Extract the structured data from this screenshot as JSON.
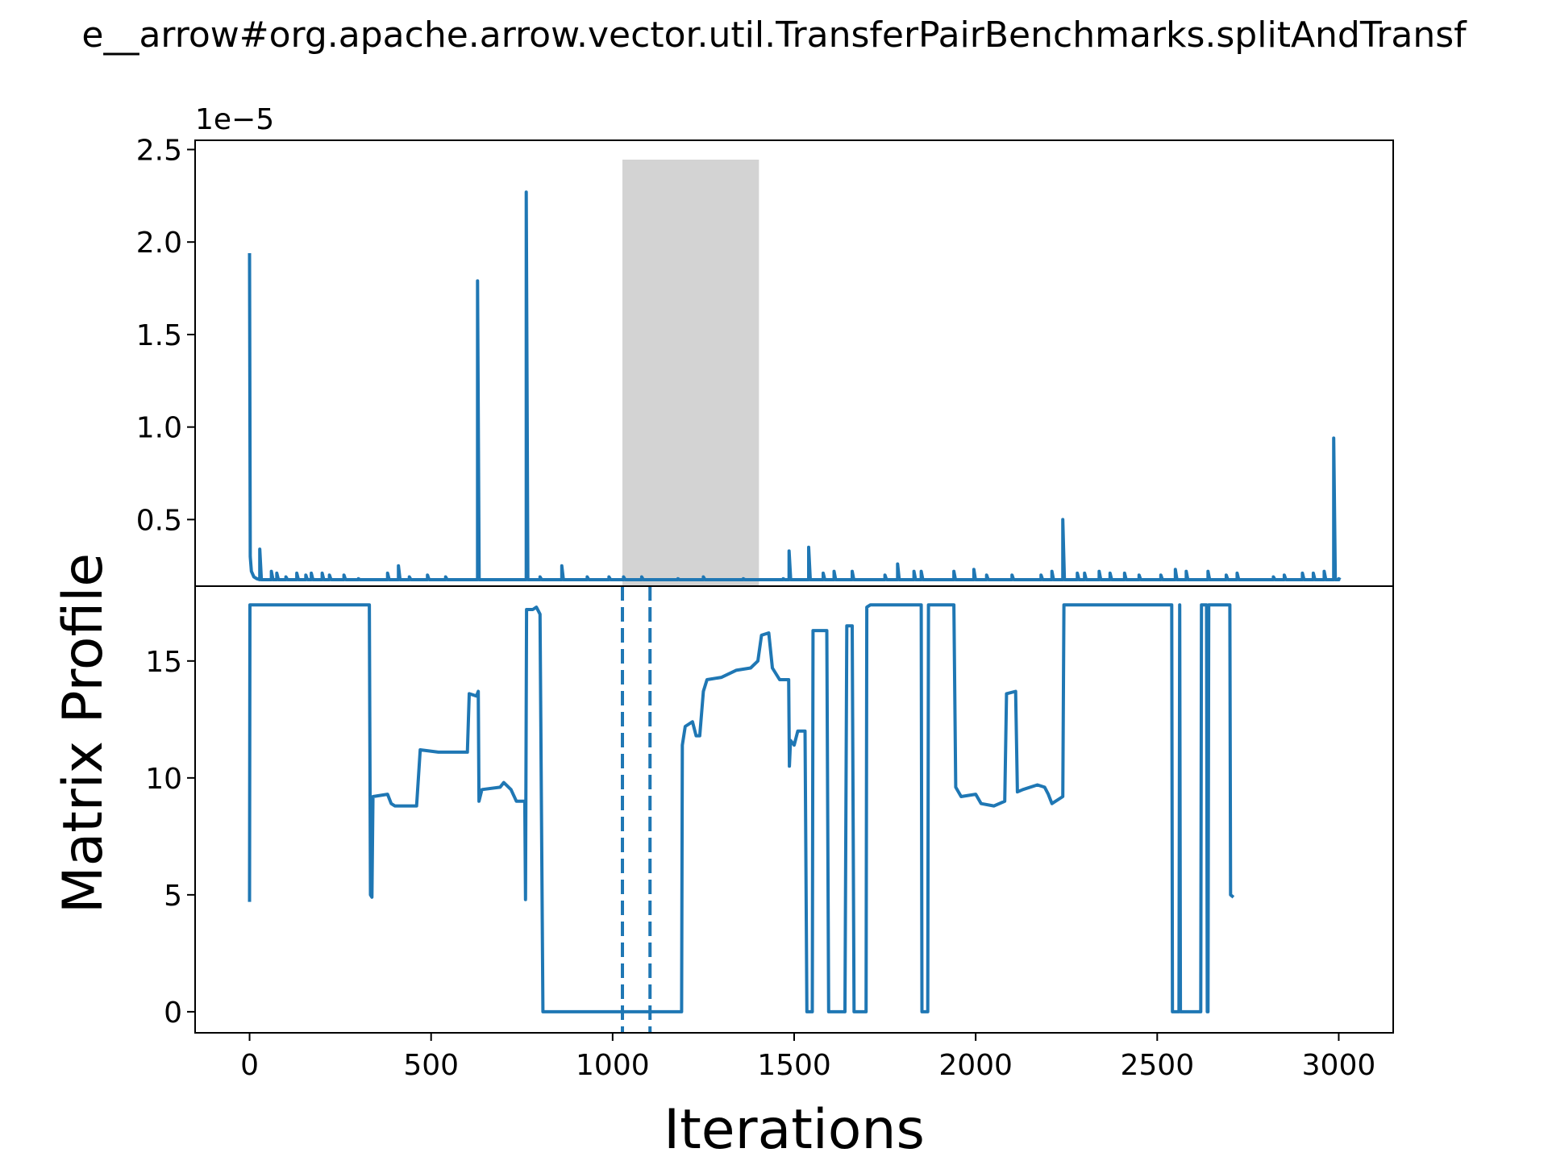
{
  "title": "e__arrow#org.apache.arrow.vector.util.TransferPairBenchmarks.splitAndTransf",
  "colors": {
    "line": "#1f77b4",
    "highlight": "#d3d3d3",
    "axis": "#000000"
  },
  "chart_data": [
    {
      "type": "line",
      "panel": "top",
      "title": "",
      "xlabel": "",
      "ylabel": "",
      "offset_label": "1e−5",
      "xlim": [
        -150,
        3150
      ],
      "ylim": [
        0.14,
        2.55
      ],
      "yticks": [
        0.5,
        1.0,
        1.5,
        2.0,
        2.5
      ],
      "ytick_labels": [
        "0.5",
        "1.0",
        "1.5",
        "2.0",
        "2.5"
      ],
      "highlight_span": [
        1027,
        1403
      ],
      "series": [
        {
          "baseline": 0.175,
          "start": [
            [
              0,
              1.94
            ],
            [
              2,
              0.3
            ],
            [
              5,
              0.22
            ],
            [
              12,
              0.19
            ],
            [
              20,
              0.18
            ]
          ],
          "spikes": [
            [
              28,
              0.34
            ],
            [
              60,
              0.22
            ],
            [
              75,
              0.21
            ],
            [
              100,
              0.19
            ],
            [
              130,
              0.21
            ],
            [
              155,
              0.2
            ],
            [
              170,
              0.21
            ],
            [
              200,
              0.21
            ],
            [
              220,
              0.2
            ],
            [
              260,
              0.2
            ],
            [
              300,
              0.18
            ],
            [
              380,
              0.21
            ],
            [
              410,
              0.25
            ],
            [
              440,
              0.19
            ],
            [
              490,
              0.2
            ],
            [
              540,
              0.19
            ],
            [
              628,
              1.79
            ],
            [
              762,
              2.27
            ],
            [
              800,
              0.19
            ],
            [
              860,
              0.25
            ],
            [
              930,
              0.19
            ],
            [
              990,
              0.19
            ],
            [
              1030,
              0.19
            ],
            [
              1080,
              0.19
            ],
            [
              1180,
              0.18
            ],
            [
              1250,
              0.19
            ],
            [
              1360,
              0.18
            ],
            [
              1470,
              0.18
            ],
            [
              1486,
              0.33
            ],
            [
              1540,
              0.35
            ],
            [
              1580,
              0.21
            ],
            [
              1610,
              0.22
            ],
            [
              1660,
              0.22
            ],
            [
              1750,
              0.2
            ],
            [
              1785,
              0.26
            ],
            [
              1830,
              0.22
            ],
            [
              1850,
              0.22
            ],
            [
              1940,
              0.22
            ],
            [
              1995,
              0.23
            ],
            [
              2030,
              0.2
            ],
            [
              2100,
              0.2
            ],
            [
              2180,
              0.2
            ],
            [
              2210,
              0.22
            ],
            [
              2240,
              0.5
            ],
            [
              2280,
              0.21
            ],
            [
              2300,
              0.21
            ],
            [
              2340,
              0.22
            ],
            [
              2370,
              0.21
            ],
            [
              2410,
              0.21
            ],
            [
              2450,
              0.2
            ],
            [
              2510,
              0.2
            ],
            [
              2550,
              0.23
            ],
            [
              2580,
              0.22
            ],
            [
              2640,
              0.22
            ],
            [
              2690,
              0.2
            ],
            [
              2720,
              0.21
            ],
            [
              2820,
              0.19
            ],
            [
              2850,
              0.2
            ],
            [
              2900,
              0.21
            ],
            [
              2930,
              0.21
            ],
            [
              2960,
              0.22
            ],
            [
              2986,
              0.94
            ],
            [
              3000,
              0.18
            ]
          ]
        }
      ]
    },
    {
      "type": "line",
      "panel": "bottom",
      "title": "",
      "xlabel": "Iterations",
      "ylabel": "Matrix Profile",
      "xlim": [
        -150,
        3150
      ],
      "ylim": [
        -0.9,
        18.2
      ],
      "xticks": [
        0,
        500,
        1000,
        1500,
        2000,
        2500,
        3000
      ],
      "xtick_labels": [
        "0",
        "500",
        "1000",
        "1500",
        "2000",
        "2500",
        "3000"
      ],
      "yticks": [
        0,
        5,
        10,
        15
      ],
      "ytick_labels": [
        "0",
        "5",
        "10",
        "15"
      ],
      "vlines": [
        1027,
        1103
      ],
      "series": [
        {
          "points": [
            [
              0,
              4.7
            ],
            [
              1,
              17.4
            ],
            [
              330,
              17.4
            ],
            [
              333,
              5.0
            ],
            [
              337,
              4.9
            ],
            [
              340,
              9.2
            ],
            [
              380,
              9.3
            ],
            [
              390,
              8.9
            ],
            [
              400,
              8.8
            ],
            [
              420,
              8.8
            ],
            [
              450,
              8.8
            ],
            [
              460,
              8.8
            ],
            [
              470,
              11.2
            ],
            [
              520,
              11.1
            ],
            [
              560,
              11.1
            ],
            [
              595,
              11.1
            ],
            [
              600,
              11.1
            ],
            [
              605,
              13.6
            ],
            [
              625,
              13.5
            ],
            [
              630,
              13.7
            ],
            [
              632,
              9.0
            ],
            [
              640,
              9.5
            ],
            [
              690,
              9.6
            ],
            [
              700,
              9.8
            ],
            [
              720,
              9.5
            ],
            [
              735,
              9.0
            ],
            [
              758,
              9.0
            ],
            [
              760,
              4.8
            ],
            [
              763,
              17.2
            ],
            [
              780,
              17.2
            ],
            [
              790,
              17.3
            ],
            [
              800,
              17.0
            ],
            [
              808,
              0.0
            ],
            [
              1190,
              0.0
            ],
            [
              1192,
              11.4
            ],
            [
              1200,
              12.2
            ],
            [
              1220,
              12.4
            ],
            [
              1230,
              11.8
            ],
            [
              1240,
              11.8
            ],
            [
              1250,
              13.7
            ],
            [
              1260,
              14.2
            ],
            [
              1300,
              14.3
            ],
            [
              1340,
              14.6
            ],
            [
              1380,
              14.7
            ],
            [
              1400,
              15.0
            ],
            [
              1410,
              16.1
            ],
            [
              1430,
              16.2
            ],
            [
              1440,
              14.7
            ],
            [
              1460,
              14.2
            ],
            [
              1485,
              14.2
            ],
            [
              1487,
              10.5
            ],
            [
              1490,
              11.6
            ],
            [
              1500,
              11.4
            ],
            [
              1510,
              12.0
            ],
            [
              1530,
              12.0
            ],
            [
              1535,
              0.0
            ],
            [
              1550,
              0.0
            ],
            [
              1552,
              16.3
            ],
            [
              1590,
              16.3
            ],
            [
              1595,
              0.0
            ],
            [
              1640,
              0.0
            ],
            [
              1645,
              16.5
            ],
            [
              1660,
              16.5
            ],
            [
              1665,
              0.0
            ],
            [
              1698,
              0.0
            ],
            [
              1700,
              17.3
            ],
            [
              1710,
              17.4
            ],
            [
              1850,
              17.4
            ],
            [
              1852,
              0.0
            ],
            [
              1868,
              0.0
            ],
            [
              1870,
              17.4
            ],
            [
              1940,
              17.4
            ],
            [
              1945,
              9.6
            ],
            [
              1960,
              9.2
            ],
            [
              2000,
              9.3
            ],
            [
              2015,
              8.9
            ],
            [
              2050,
              8.8
            ],
            [
              2080,
              9.0
            ],
            [
              2085,
              13.6
            ],
            [
              2110,
              13.7
            ],
            [
              2115,
              9.4
            ],
            [
              2130,
              9.5
            ],
            [
              2170,
              9.7
            ],
            [
              2190,
              9.6
            ],
            [
              2200,
              9.3
            ],
            [
              2210,
              8.9
            ],
            [
              2240,
              9.2
            ],
            [
              2243,
              17.4
            ],
            [
              2540,
              17.4
            ],
            [
              2542,
              0.0
            ],
            [
              2560,
              0.0
            ],
            [
              2562,
              17.4
            ],
            [
              2564,
              0.0
            ],
            [
              2620,
              0.0
            ],
            [
              2622,
              17.4
            ],
            [
              2636,
              17.4
            ],
            [
              2638,
              0.0
            ],
            [
              2640,
              0.0
            ],
            [
              2642,
              17.4
            ],
            [
              2700,
              17.4
            ],
            [
              2702,
              5.0
            ],
            [
              2710,
              4.9
            ]
          ]
        }
      ]
    }
  ]
}
